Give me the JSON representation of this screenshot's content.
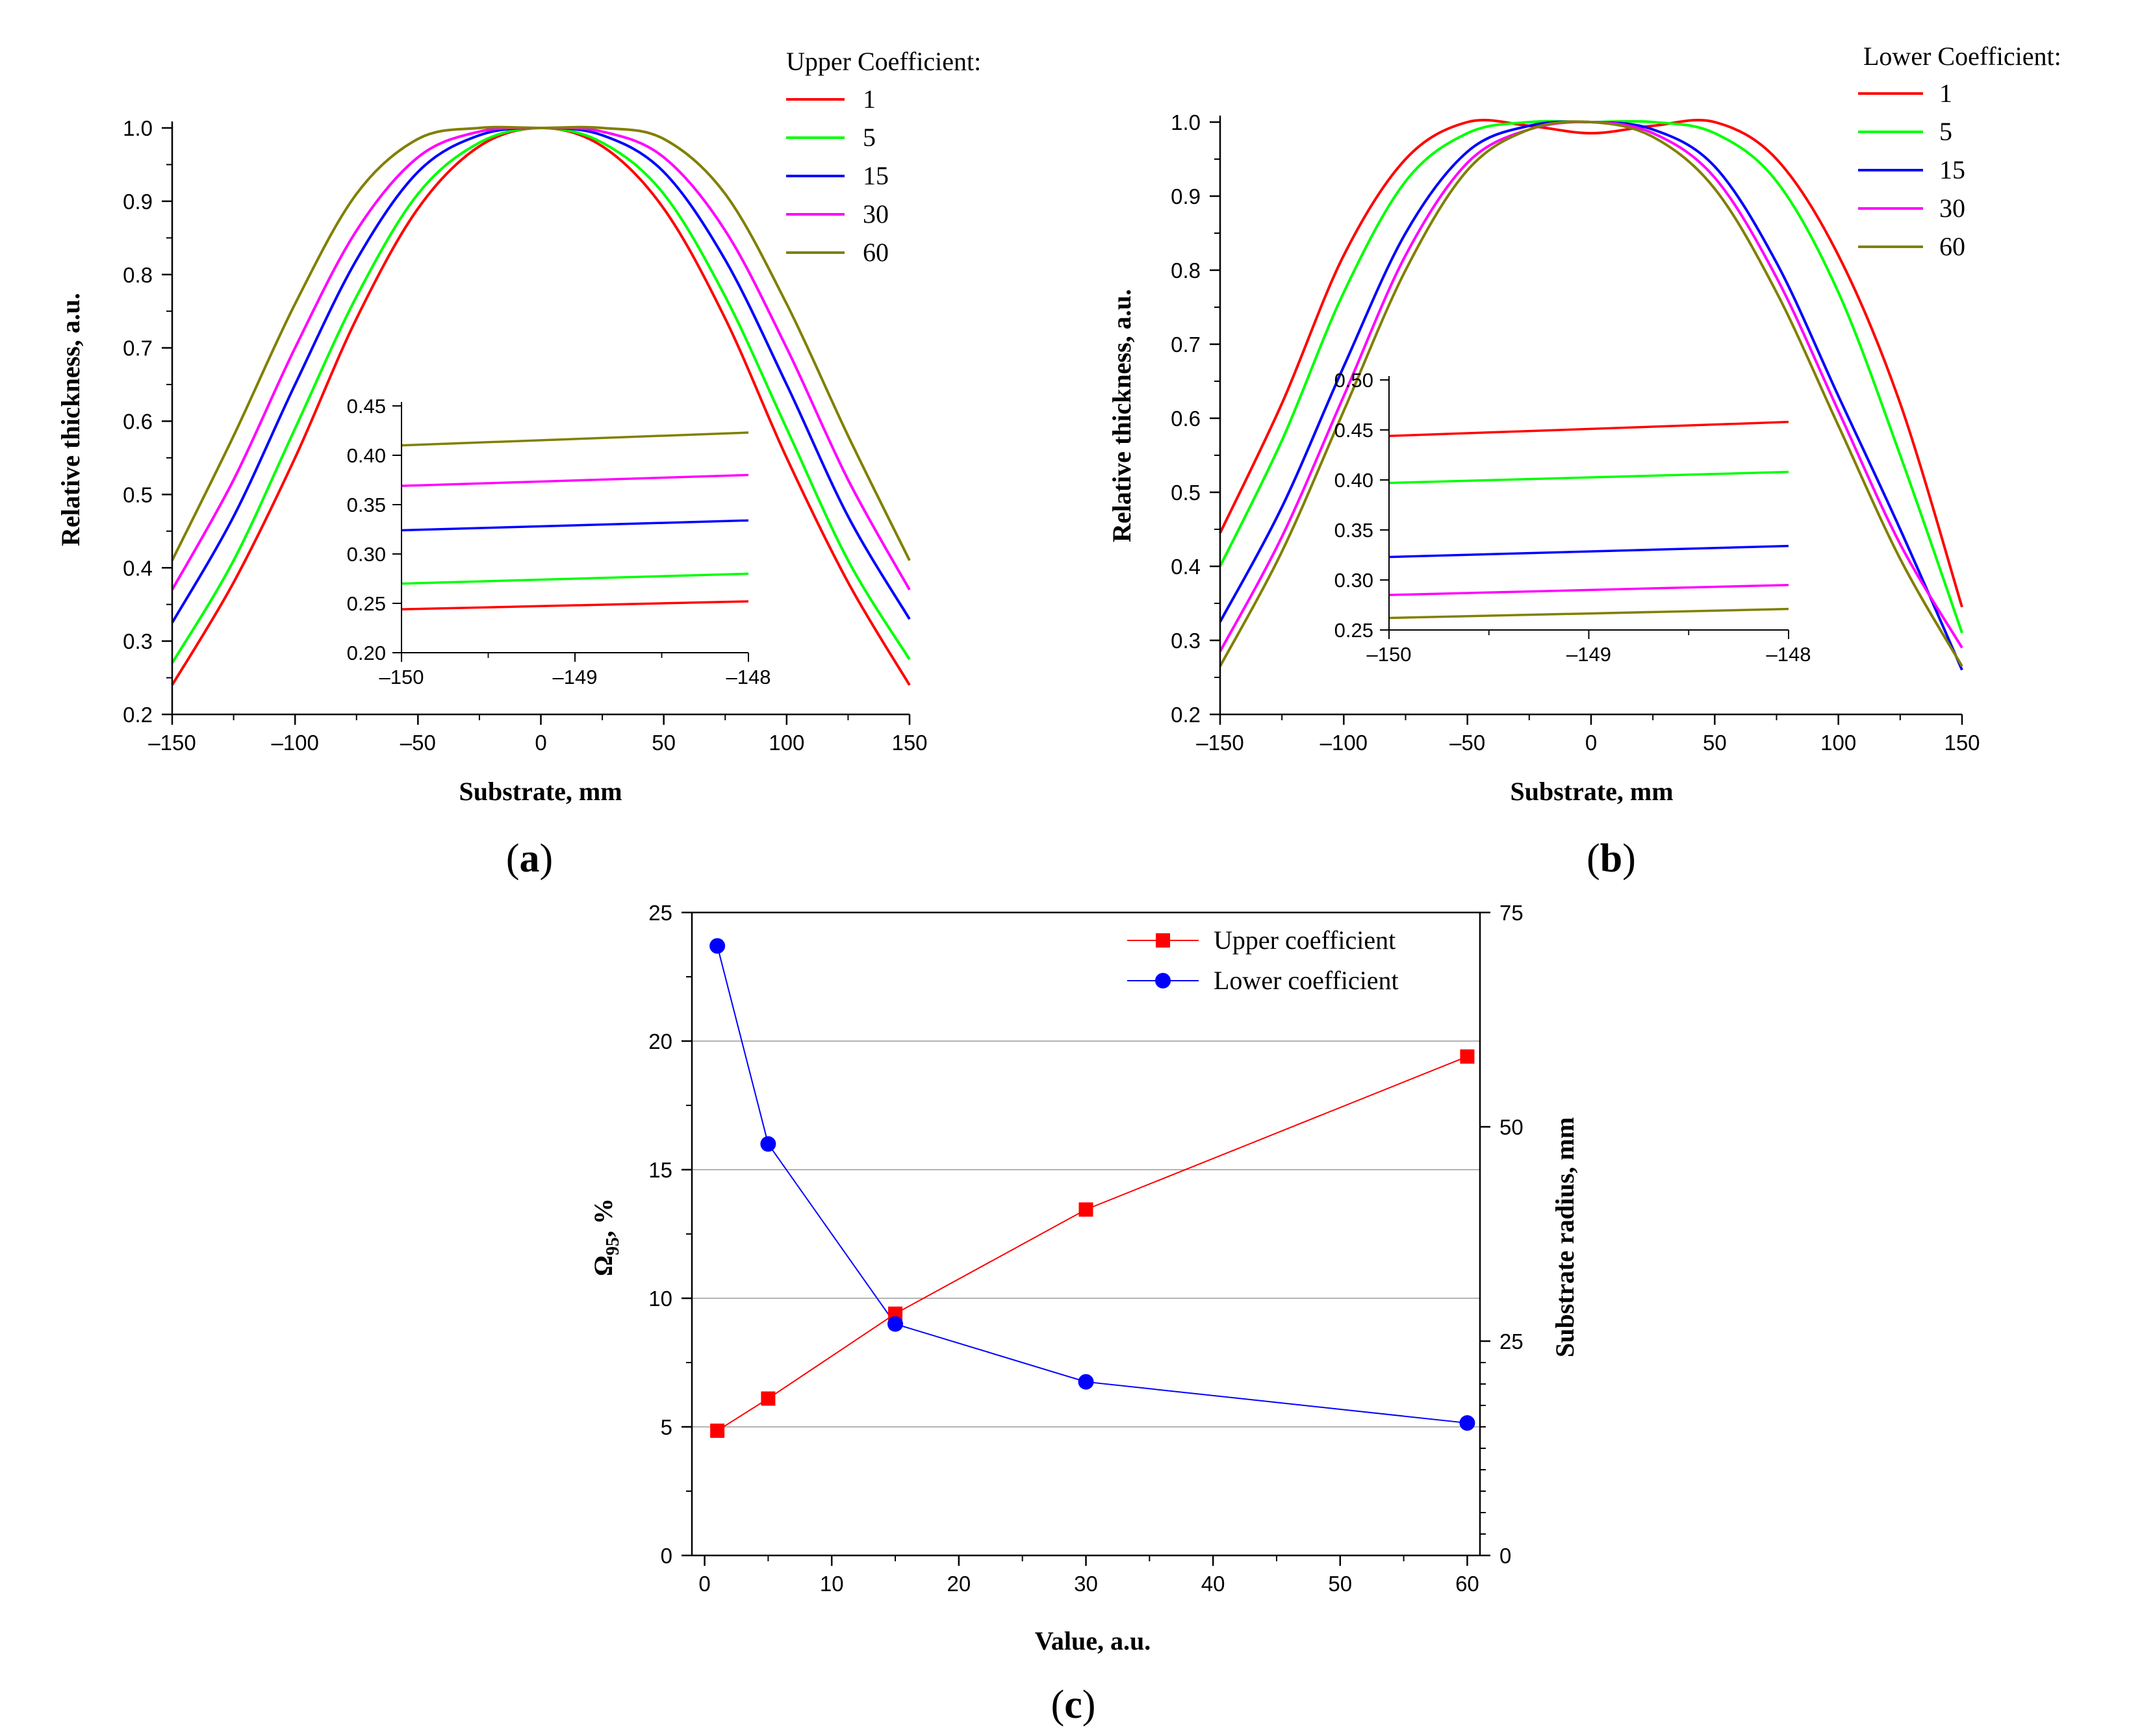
{
  "chart_data": [
    {
      "panel": "(a)",
      "panel_letter": "a",
      "type": "line",
      "xlabel": "Substrate, mm",
      "ylabel": "Relative thickness, a.u.",
      "xlim": [
        -150,
        150
      ],
      "ylim": [
        0.2,
        1.0
      ],
      "xticks": [
        -150,
        -100,
        -50,
        0,
        50,
        100,
        150
      ],
      "xtick_labels": [
        "–150",
        "–100",
        "–50",
        "0",
        "50",
        "100",
        "150"
      ],
      "yticks": [
        0.2,
        0.3,
        0.4,
        0.5,
        0.6,
        0.7,
        0.8,
        0.9,
        1.0
      ],
      "ytick_labels": [
        "0.2",
        "0.3",
        "0.4",
        "0.5",
        "0.6",
        "0.7",
        "0.8",
        "0.9",
        "1.0"
      ],
      "legend_title": "Upper Coefficient:",
      "legend_position": "top-right",
      "series": [
        {
          "name": "1",
          "color": "#ff0000",
          "x": [
            -150,
            -125,
            -100,
            -75,
            -50,
            -25,
            0,
            25,
            50,
            75,
            100,
            125,
            150
          ],
          "y": [
            0.24,
            0.38,
            0.55,
            0.74,
            0.89,
            0.975,
            1.0,
            0.975,
            0.89,
            0.74,
            0.55,
            0.38,
            0.24
          ]
        },
        {
          "name": "5",
          "color": "#00ff00",
          "x": [
            -150,
            -125,
            -100,
            -75,
            -50,
            -25,
            0,
            25,
            50,
            75,
            100,
            125,
            150
          ],
          "y": [
            0.27,
            0.41,
            0.59,
            0.77,
            0.91,
            0.98,
            1.0,
            0.98,
            0.91,
            0.77,
            0.59,
            0.41,
            0.275
          ]
        },
        {
          "name": "15",
          "color": "#0000ff",
          "x": [
            -150,
            -125,
            -100,
            -75,
            -50,
            -25,
            0,
            25,
            50,
            75,
            100,
            125,
            150
          ],
          "y": [
            0.325,
            0.47,
            0.65,
            0.82,
            0.94,
            0.99,
            1.0,
            0.99,
            0.94,
            0.82,
            0.65,
            0.47,
            0.33
          ]
        },
        {
          "name": "30",
          "color": "#ff00ff",
          "x": [
            -150,
            -125,
            -100,
            -75,
            -50,
            -25,
            0,
            25,
            50,
            75,
            100,
            125,
            150
          ],
          "y": [
            0.37,
            0.52,
            0.7,
            0.86,
            0.96,
            0.995,
            1.0,
            0.995,
            0.96,
            0.86,
            0.7,
            0.52,
            0.37
          ]
        },
        {
          "name": "60",
          "color": "#808000",
          "x": [
            -150,
            -125,
            -100,
            -75,
            -50,
            -25,
            0,
            25,
            50,
            75,
            100,
            125,
            150
          ],
          "y": [
            0.41,
            0.58,
            0.76,
            0.91,
            0.985,
            1.0,
            1.0,
            1.0,
            0.985,
            0.91,
            0.76,
            0.58,
            0.41
          ]
        }
      ],
      "inset": {
        "xlim": [
          -150,
          -148
        ],
        "ylim": [
          0.2,
          0.45
        ],
        "xticks": [
          -150,
          -149,
          -148
        ],
        "xtick_labels": [
          "–150",
          "–149",
          "–148"
        ],
        "yticks": [
          0.2,
          0.25,
          0.3,
          0.35,
          0.4,
          0.45
        ],
        "ytick_labels": [
          "0.20",
          "0.25",
          "0.30",
          "0.35",
          "0.40",
          "0.45"
        ],
        "series": [
          {
            "name": "1",
            "color": "#ff0000",
            "x": [
              -150,
              -148
            ],
            "y": [
              0.244,
              0.252
            ]
          },
          {
            "name": "5",
            "color": "#00ff00",
            "x": [
              -150,
              -148
            ],
            "y": [
              0.27,
              0.28
            ]
          },
          {
            "name": "15",
            "color": "#0000ff",
            "x": [
              -150,
              -148
            ],
            "y": [
              0.324,
              0.334
            ]
          },
          {
            "name": "30",
            "color": "#ff00ff",
            "x": [
              -150,
              -148
            ],
            "y": [
              0.369,
              0.38
            ]
          },
          {
            "name": "60",
            "color": "#808000",
            "x": [
              -150,
              -148
            ],
            "y": [
              0.41,
              0.423
            ]
          }
        ]
      }
    },
    {
      "panel": "(b)",
      "panel_letter": "b",
      "type": "line",
      "xlabel": "Substrate, mm",
      "ylabel": "Relative thickness, a.u.",
      "xlim": [
        -150,
        150
      ],
      "ylim": [
        0.2,
        1.0
      ],
      "xticks": [
        -150,
        -100,
        -50,
        0,
        50,
        100,
        150
      ],
      "xtick_labels": [
        "–150",
        "–100",
        "–50",
        "0",
        "50",
        "100",
        "150"
      ],
      "yticks": [
        0.2,
        0.3,
        0.4,
        0.5,
        0.6,
        0.7,
        0.8,
        0.9,
        1.0
      ],
      "ytick_labels": [
        "0.2",
        "0.3",
        "0.4",
        "0.5",
        "0.6",
        "0.7",
        "0.8",
        "0.9",
        "1.0"
      ],
      "legend_title": "Lower Coefficient:",
      "legend_position": "top-right",
      "series": [
        {
          "name": "1",
          "color": "#ff0000",
          "x": [
            -150,
            -125,
            -100,
            -75,
            -50,
            -25,
            0,
            25,
            50,
            75,
            100,
            125,
            150
          ],
          "y": [
            0.445,
            0.62,
            0.82,
            0.95,
            1.0,
            0.995,
            0.985,
            0.995,
            1.0,
            0.95,
            0.82,
            0.62,
            0.345
          ]
        },
        {
          "name": "5",
          "color": "#00ff00",
          "x": [
            -150,
            -125,
            -100,
            -75,
            -50,
            -25,
            0,
            25,
            50,
            75,
            100,
            125,
            150
          ],
          "y": [
            0.4,
            0.57,
            0.77,
            0.92,
            0.985,
            1.0,
            1.0,
            1.0,
            0.985,
            0.92,
            0.77,
            0.55,
            0.31
          ]
        },
        {
          "name": "15",
          "color": "#0000ff",
          "x": [
            -150,
            -125,
            -100,
            -75,
            -50,
            -25,
            0,
            25,
            50,
            75,
            100,
            125,
            150
          ],
          "y": [
            0.325,
            0.48,
            0.67,
            0.85,
            0.96,
            0.995,
            1.0,
            0.99,
            0.94,
            0.81,
            0.63,
            0.45,
            0.26
          ]
        },
        {
          "name": "30",
          "color": "#ff00ff",
          "x": [
            -150,
            -125,
            -100,
            -75,
            -50,
            -25,
            0,
            25,
            50,
            75,
            100,
            125,
            150
          ],
          "y": [
            0.285,
            0.44,
            0.63,
            0.82,
            0.945,
            0.99,
            1.0,
            0.985,
            0.925,
            0.79,
            0.61,
            0.43,
            0.29
          ]
        },
        {
          "name": "60",
          "color": "#808000",
          "x": [
            -150,
            -125,
            -100,
            -75,
            -50,
            -25,
            0,
            25,
            50,
            75,
            100,
            125,
            150
          ],
          "y": [
            0.265,
            0.42,
            0.61,
            0.8,
            0.935,
            0.99,
            1.0,
            0.98,
            0.91,
            0.77,
            0.59,
            0.41,
            0.265
          ]
        }
      ],
      "inset": {
        "xlim": [
          -150,
          -148
        ],
        "ylim": [
          0.25,
          0.5
        ],
        "xticks": [
          -150,
          -149,
          -148
        ],
        "xtick_labels": [
          "–150",
          "–149",
          "–148"
        ],
        "yticks": [
          0.25,
          0.3,
          0.35,
          0.4,
          0.45,
          0.5
        ],
        "ytick_labels": [
          "0.25",
          "0.30",
          "0.35",
          "0.40",
          "0.45",
          "0.50"
        ],
        "series": [
          {
            "name": "1",
            "color": "#ff0000",
            "x": [
              -150,
              -148
            ],
            "y": [
              0.444,
              0.458
            ]
          },
          {
            "name": "5",
            "color": "#00ff00",
            "x": [
              -150,
              -148
            ],
            "y": [
              0.397,
              0.408
            ]
          },
          {
            "name": "15",
            "color": "#0000ff",
            "x": [
              -150,
              -148
            ],
            "y": [
              0.323,
              0.334
            ]
          },
          {
            "name": "30",
            "color": "#ff00ff",
            "x": [
              -150,
              -148
            ],
            "y": [
              0.285,
              0.295
            ]
          },
          {
            "name": "60",
            "color": "#808000",
            "x": [
              -150,
              -148
            ],
            "y": [
              0.262,
              0.271
            ]
          }
        ]
      }
    },
    {
      "panel": "(c)",
      "panel_letter": "c",
      "type": "line",
      "xlabel": "Value, a.u.",
      "ylabel": "Ω₉₅, %",
      "ylabel_main": "Ω",
      "ylabel_sub": "95",
      "ylabel_rest": ", %",
      "y2label": "Substrate radius, mm",
      "xlim": [
        -1,
        61
      ],
      "ylim": [
        0,
        25
      ],
      "y2lim": [
        0,
        75
      ],
      "xticks": [
        0,
        10,
        20,
        30,
        40,
        50,
        60
      ],
      "xtick_labels": [
        "0",
        "10",
        "20",
        "30",
        "40",
        "50",
        "60"
      ],
      "yticks": [
        0,
        5,
        10,
        15,
        20,
        25
      ],
      "ytick_labels": [
        "0",
        "5",
        "10",
        "15",
        "20",
        "25"
      ],
      "y2ticks": [
        0,
        25,
        50,
        75
      ],
      "y2tick_labels": [
        "0",
        "25",
        "50",
        "75"
      ],
      "grid": "horizontal",
      "legend_position": "top-right",
      "series": [
        {
          "name": "Upper coefficient",
          "color": "#ff0000",
          "marker": "square",
          "x": [
            1,
            5,
            15,
            30,
            60
          ],
          "y": [
            4.85,
            6.1,
            9.4,
            13.45,
            19.4
          ]
        },
        {
          "name": "Lower coefficient",
          "color": "#0000ff",
          "marker": "circle",
          "x": [
            1,
            5,
            15,
            30,
            60
          ],
          "y": [
            23.7,
            16.0,
            9.0,
            6.75,
            5.15
          ]
        }
      ]
    }
  ]
}
